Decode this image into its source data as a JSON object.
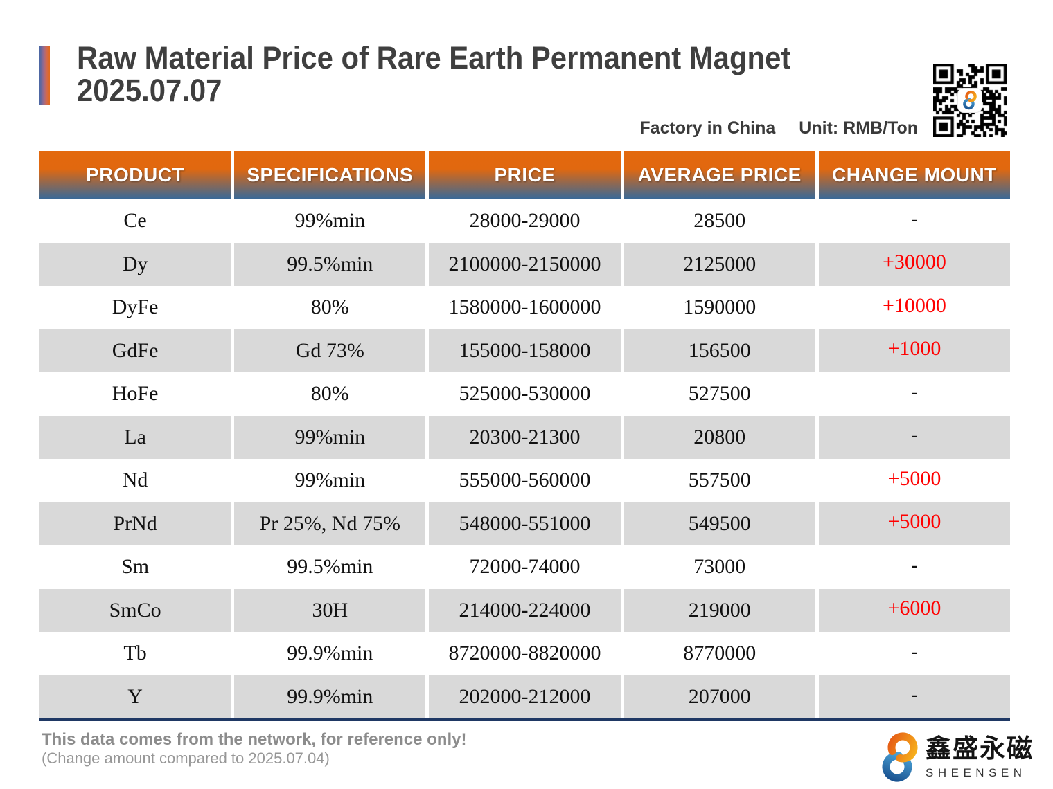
{
  "header": {
    "title_line1": "Raw Material Price of Rare Earth Permanent Magnet",
    "title_line2": "2025.07.07",
    "factory_label": "Factory in China",
    "unit_label": "Unit: RMB/Ton"
  },
  "icons": {
    "qr": "qr-code",
    "brand_mark": "s-ring-logo"
  },
  "table": {
    "columns": [
      "PRODUCT",
      "SPECIFICATIONS",
      "PRICE",
      "AVERAGE PRICE",
      "CHANGE MOUNT"
    ],
    "rows": [
      {
        "product": "Ce",
        "specifications": "99%min",
        "price": "28000-29000",
        "average_price": "28500",
        "change": "-"
      },
      {
        "product": "Dy",
        "specifications": "99.5%min",
        "price": "2100000-2150000",
        "average_price": "2125000",
        "change": "+30000"
      },
      {
        "product": "DyFe",
        "specifications": "80%",
        "price": "1580000-1600000",
        "average_price": "1590000",
        "change": "+10000"
      },
      {
        "product": "GdFe",
        "specifications": "Gd 73%",
        "price": "155000-158000",
        "average_price": "156500",
        "change": "+1000"
      },
      {
        "product": "HoFe",
        "specifications": "80%",
        "price": "525000-530000",
        "average_price": "527500",
        "change": "-"
      },
      {
        "product": "La",
        "specifications": "99%min",
        "price": "20300-21300",
        "average_price": "20800",
        "change": "-"
      },
      {
        "product": "Nd",
        "specifications": "99%min",
        "price": "555000-560000",
        "average_price": "557500",
        "change": "+5000"
      },
      {
        "product": "PrNd",
        "specifications": "Pr 25%, Nd 75%",
        "price": "548000-551000",
        "average_price": "549500",
        "change": "+5000"
      },
      {
        "product": "Sm",
        "specifications": "99.5%min",
        "price": "72000-74000",
        "average_price": "73000",
        "change": "-"
      },
      {
        "product": "SmCo",
        "specifications": "30H",
        "price": "214000-224000",
        "average_price": "219000",
        "change": "+6000"
      },
      {
        "product": "Tb",
        "specifications": "99.9%min",
        "price": "8720000-8820000",
        "average_price": "8770000",
        "change": "-"
      },
      {
        "product": "Y",
        "specifications": "99.9%min",
        "price": "202000-212000",
        "average_price": "207000",
        "change": "-"
      }
    ]
  },
  "footer": {
    "note_line1": "This data comes from the network, for reference only!",
    "note_line2": "(Change amount compared to 2025.07.04)",
    "brand_cn": "鑫盛永磁",
    "brand_en": "SHEENSEN"
  },
  "colors": {
    "header_gradient_top": "#E3690E",
    "header_gradient_bottom": "#36699A",
    "row_alt_background": "#D9D9D9",
    "change_up": "#FF0000",
    "bottom_rule": "#1F3864",
    "accent_orange": "#E2691A",
    "accent_blue": "#4767A5"
  }
}
